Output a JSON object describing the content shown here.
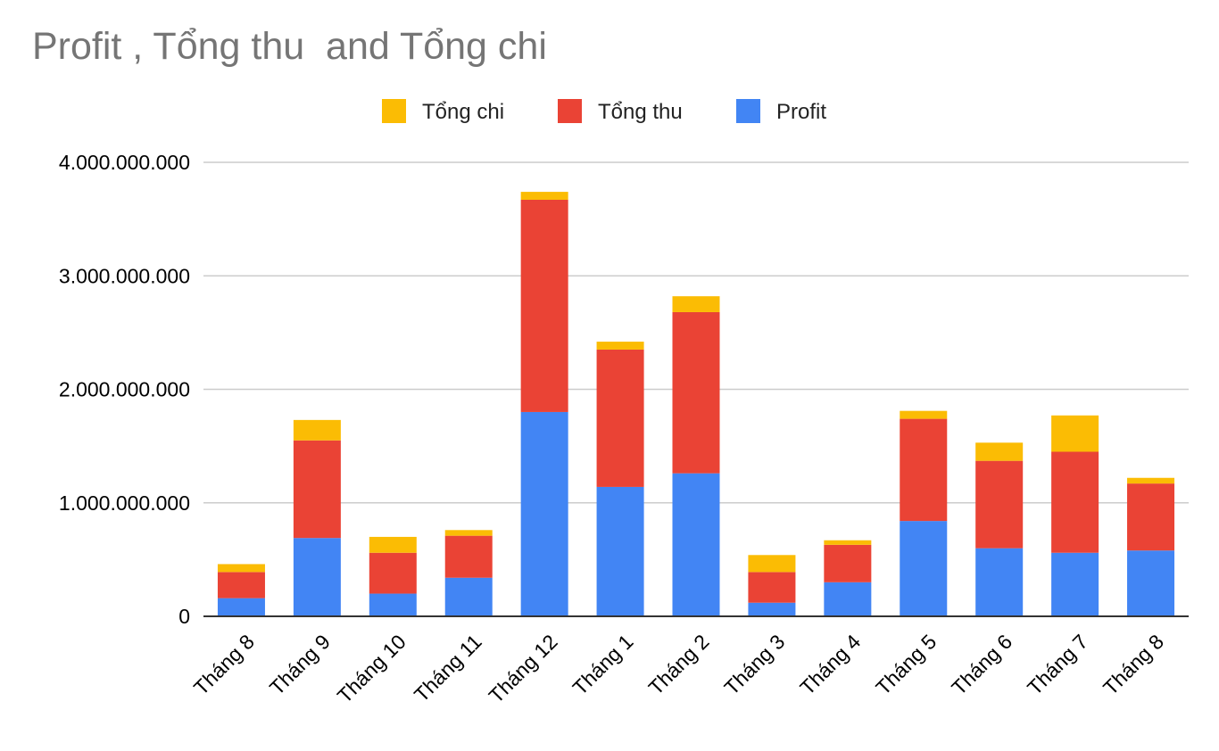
{
  "chart_data": {
    "type": "bar",
    "stacked": true,
    "title": "Profit , Tổng thu  and Tổng chi",
    "categories": [
      "Tháng 8",
      "Tháng 9",
      "Tháng 10",
      "Tháng 11",
      "Tháng 12",
      "Tháng 1",
      "Tháng 2",
      "Tháng 3",
      "Tháng 4",
      "Tháng 5",
      "Tháng 6",
      "Tháng 7",
      "Tháng 8"
    ],
    "series": [
      {
        "name": "Profit",
        "color": "#4285F4",
        "values": [
          160000000,
          690000000,
          200000000,
          340000000,
          1800000000,
          1140000000,
          1260000000,
          120000000,
          300000000,
          840000000,
          600000000,
          560000000,
          580000000
        ]
      },
      {
        "name": "Tổng thu",
        "color": "#EA4335",
        "values": [
          230000000,
          860000000,
          360000000,
          370000000,
          1870000000,
          1210000000,
          1420000000,
          270000000,
          330000000,
          900000000,
          770000000,
          890000000,
          590000000
        ]
      },
      {
        "name": "Tổng chi",
        "color": "#FBBC04",
        "values": [
          70000000,
          180000000,
          140000000,
          50000000,
          70000000,
          70000000,
          140000000,
          150000000,
          40000000,
          70000000,
          160000000,
          320000000,
          50000000
        ]
      }
    ],
    "legend_order": [
      "Tổng chi",
      "Tổng thu",
      "Profit"
    ],
    "legend_position": "top",
    "ylim": [
      0,
      4000000000
    ],
    "yticks": [
      0,
      1000000000,
      2000000000,
      3000000000,
      4000000000
    ],
    "ytick_labels": [
      "0",
      "1.000.000.000",
      "2.000.000.000",
      "3.000.000.000",
      "4.000.000.000"
    ],
    "xlabel": "",
    "ylabel": "",
    "grid": true,
    "xtick_rotation": -45
  }
}
